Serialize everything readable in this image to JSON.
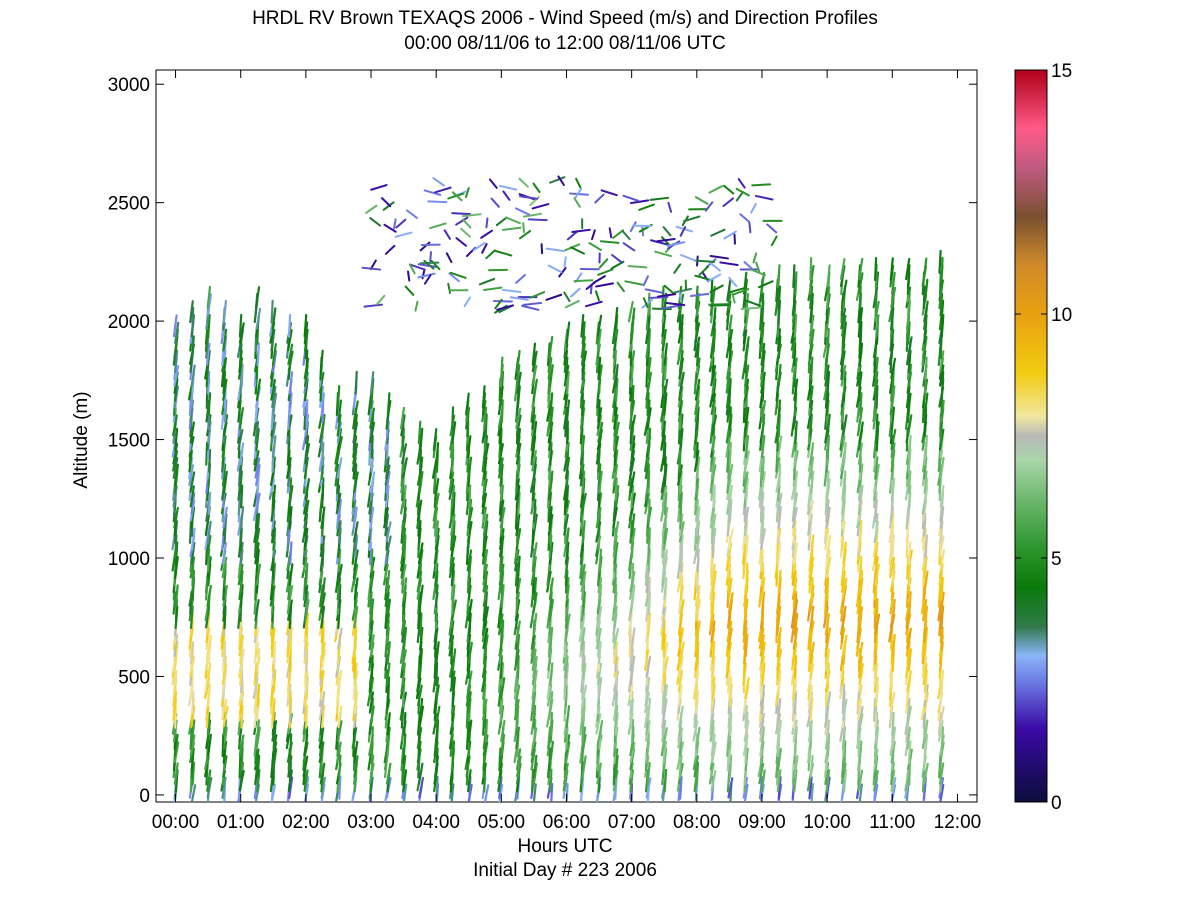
{
  "chart_data": {
    "type": "scatter",
    "subtype": "wind-barb-profiles",
    "title": "HRDL RV Brown TEXAQS 2006 - Wind Speed (m/s) and Direction Profiles",
    "subtitle": "00:00 08/11/06 to 12:00 08/11/06  UTC",
    "xlabel": "Hours UTC",
    "xsublabel": "Initial Day # 223  2006",
    "ylabel": "Altitude (m)",
    "xlim": [
      -0.3,
      12.3
    ],
    "ylim": [
      -30,
      3060
    ],
    "x_ticks": [
      0,
      1,
      2,
      3,
      4,
      5,
      6,
      7,
      8,
      9,
      10,
      11,
      12
    ],
    "x_tick_labels": [
      "00:00",
      "01:00",
      "02:00",
      "03:00",
      "04:00",
      "05:00",
      "06:00",
      "07:00",
      "08:00",
      "09:00",
      "10:00",
      "11:00",
      "12:00"
    ],
    "y_ticks": [
      0,
      500,
      1000,
      1500,
      2000,
      2500,
      3000
    ],
    "y_tick_labels": [
      "0",
      "500",
      "1000",
      "1500",
      "2000",
      "2500",
      "3000"
    ],
    "colorbar": {
      "min": 0,
      "max": 15,
      "tick_values": [
        0,
        5,
        10,
        15
      ],
      "tick_labels": [
        "0",
        "5",
        "10",
        "15"
      ],
      "stops": [
        {
          "v": 0,
          "c": "#0c0c3c"
        },
        {
          "v": 1.5,
          "c": "#3a0aa6"
        },
        {
          "v": 2.5,
          "c": "#6e7fe6"
        },
        {
          "v": 3.0,
          "c": "#8ab4f8"
        },
        {
          "v": 3.6,
          "c": "#2f7a4a"
        },
        {
          "v": 4.4,
          "c": "#0a7a0a"
        },
        {
          "v": 5.2,
          "c": "#2d962d"
        },
        {
          "v": 6.2,
          "c": "#6db86d"
        },
        {
          "v": 7.0,
          "c": "#a9d5a9"
        },
        {
          "v": 7.5,
          "c": "#b8b8b8"
        },
        {
          "v": 7.9,
          "c": "#f0e6a0"
        },
        {
          "v": 8.8,
          "c": "#f2cc10"
        },
        {
          "v": 10.0,
          "c": "#e8a010"
        },
        {
          "v": 11.0,
          "c": "#d08a2a"
        },
        {
          "v": 12.0,
          "c": "#7a5030"
        },
        {
          "v": 13.0,
          "c": "#c05a80"
        },
        {
          "v": 13.8,
          "c": "#ff5a88"
        },
        {
          "v": 15.0,
          "c": "#b00018"
        }
      ]
    },
    "profile_times": [
      0,
      0.25,
      0.5,
      0.75,
      1.0,
      1.25,
      1.5,
      1.75,
      2.0,
      2.25,
      2.5,
      2.75,
      3.0,
      3.25,
      3.5,
      3.75,
      4.0,
      4.25,
      4.5,
      4.75,
      5.0,
      5.25,
      5.5,
      5.75,
      6.0,
      6.25,
      6.5,
      6.75,
      7.0,
      7.25,
      7.5,
      7.75,
      8.0,
      8.25,
      8.5,
      8.75,
      9.0,
      9.25,
      9.5,
      9.75,
      10.0,
      10.25,
      10.5,
      10.75,
      11.0,
      11.25,
      11.5,
      11.75
    ],
    "boundary_layer_top_m": [
      2000,
      2050,
      2100,
      2050,
      2000,
      2100,
      2050,
      2000,
      2000,
      1850,
      1700,
      1750,
      1750,
      1650,
      1600,
      1550,
      1500,
      1600,
      1650,
      1700,
      1800,
      1850,
      1880,
      1900,
      1950,
      1980,
      2000,
      2030,
      2050,
      2070,
      2100,
      2110,
      2120,
      2130,
      2150,
      2160,
      2180,
      2200,
      2200,
      2220,
      2200,
      2220,
      2220,
      2230,
      2230,
      2240,
      2240,
      2250
    ],
    "upper_layer": {
      "x_range": [
        3.0,
        9.2
      ],
      "y_range": [
        2050,
        2600
      ]
    },
    "speed_structure_note_values": {
      "near_surface_speed_ms": 2.0,
      "low_level_max_speed_ms": 10.0,
      "residual_layer_speed_ms": 4.5,
      "upper_layer_speed_ms": 2.5
    }
  }
}
